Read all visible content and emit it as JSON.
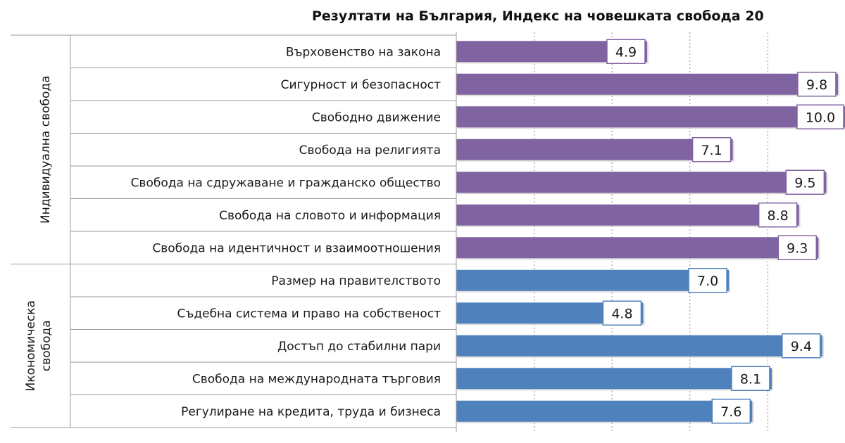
{
  "chart_data": {
    "type": "bar",
    "orientation": "horizontal",
    "title": "Резултати на България, Индекс на човешката свобода 20",
    "xlim": [
      0,
      10
    ],
    "grid": "vertical-dotted",
    "groups": [
      {
        "label_lines": [
          "Индивидуална свобода"
        ],
        "color": "#8064a2",
        "categories": [
          "Върховенство на закона",
          "Сигурност и безопасност",
          "Свободно движение",
          "Свобода на религията",
          "Свобода на сдружаване и гражданско общество",
          "Свобода на словото и информация",
          "Свобода на идентичност и взаимоотношения"
        ],
        "values": [
          4.9,
          9.8,
          10.0,
          7.1,
          9.5,
          8.8,
          9.3
        ],
        "value_labels": [
          "4.9",
          "9.8",
          "10.0",
          "7.1",
          "9.5",
          "8.8",
          "9.3"
        ]
      },
      {
        "label_lines": [
          "Икономическа",
          "свобода"
        ],
        "color": "#4f81bd",
        "categories": [
          "Размер на правителството",
          "Съдебна система и право на собственост",
          "Достъп до стабилни пари",
          "Свобода на международната търговия",
          "Регулиране на кредита, труда и бизнеса"
        ],
        "values": [
          7.0,
          4.8,
          9.4,
          8.1,
          7.6
        ],
        "value_labels": [
          "7.0",
          "4.8",
          "9.4",
          "8.1",
          "7.6"
        ]
      }
    ]
  }
}
